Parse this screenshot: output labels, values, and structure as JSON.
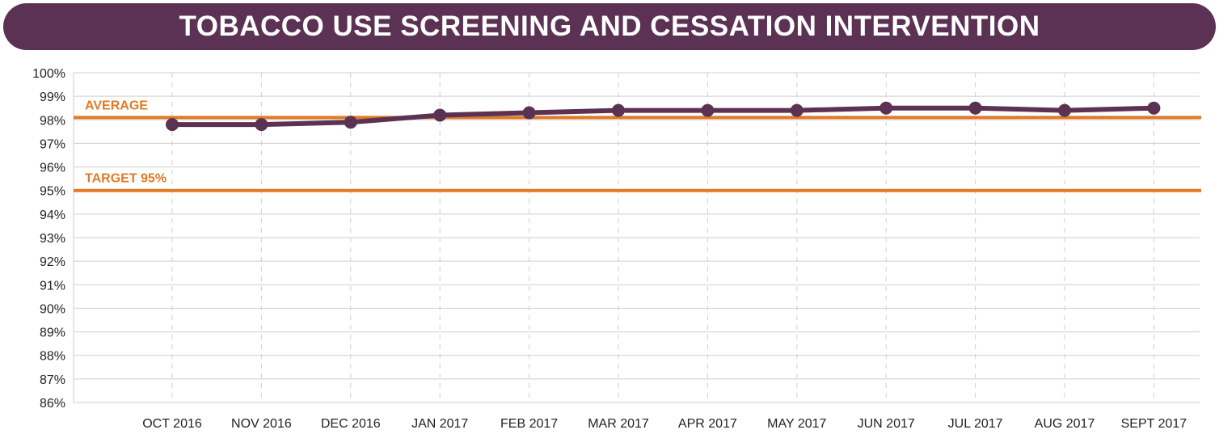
{
  "title": "TOBACCO USE SCREENING AND CESSATION INTERVENTION",
  "colors": {
    "banner": "#5b3253",
    "series": "#5b3253",
    "reference": "#e07a26",
    "grid": "#cfcfcf"
  },
  "chart_data": {
    "type": "line",
    "title": "TOBACCO USE SCREENING AND CESSATION INTERVENTION",
    "xlabel": "",
    "ylabel": "",
    "categories": [
      "OCT 2016",
      "NOV 2016",
      "DEC 2016",
      "JAN 2017",
      "FEB 2017",
      "MAR 2017",
      "APR 2017",
      "MAY 2017",
      "JUN 2017",
      "JUL 2017",
      "AUG 2017",
      "SEPT 2017"
    ],
    "series": [
      {
        "values": [
          97.8,
          97.8,
          97.9,
          98.2,
          98.3,
          98.4,
          98.4,
          98.4,
          98.5,
          98.5,
          98.4,
          98.5
        ]
      }
    ],
    "reference_lines": [
      {
        "label": "AVERAGE",
        "value": 98.1
      },
      {
        "label": "TARGET 95%",
        "value": 95
      }
    ],
    "ylim": [
      86,
      100
    ],
    "y_ticks": [
      "86%",
      "87%",
      "88%",
      "89%",
      "90%",
      "91%",
      "92%",
      "93%",
      "94%",
      "95%",
      "96%",
      "97%",
      "98%",
      "99%",
      "100%"
    ],
    "grid": {
      "horizontal": true,
      "vertical_dashed": true
    },
    "legend": "none"
  }
}
